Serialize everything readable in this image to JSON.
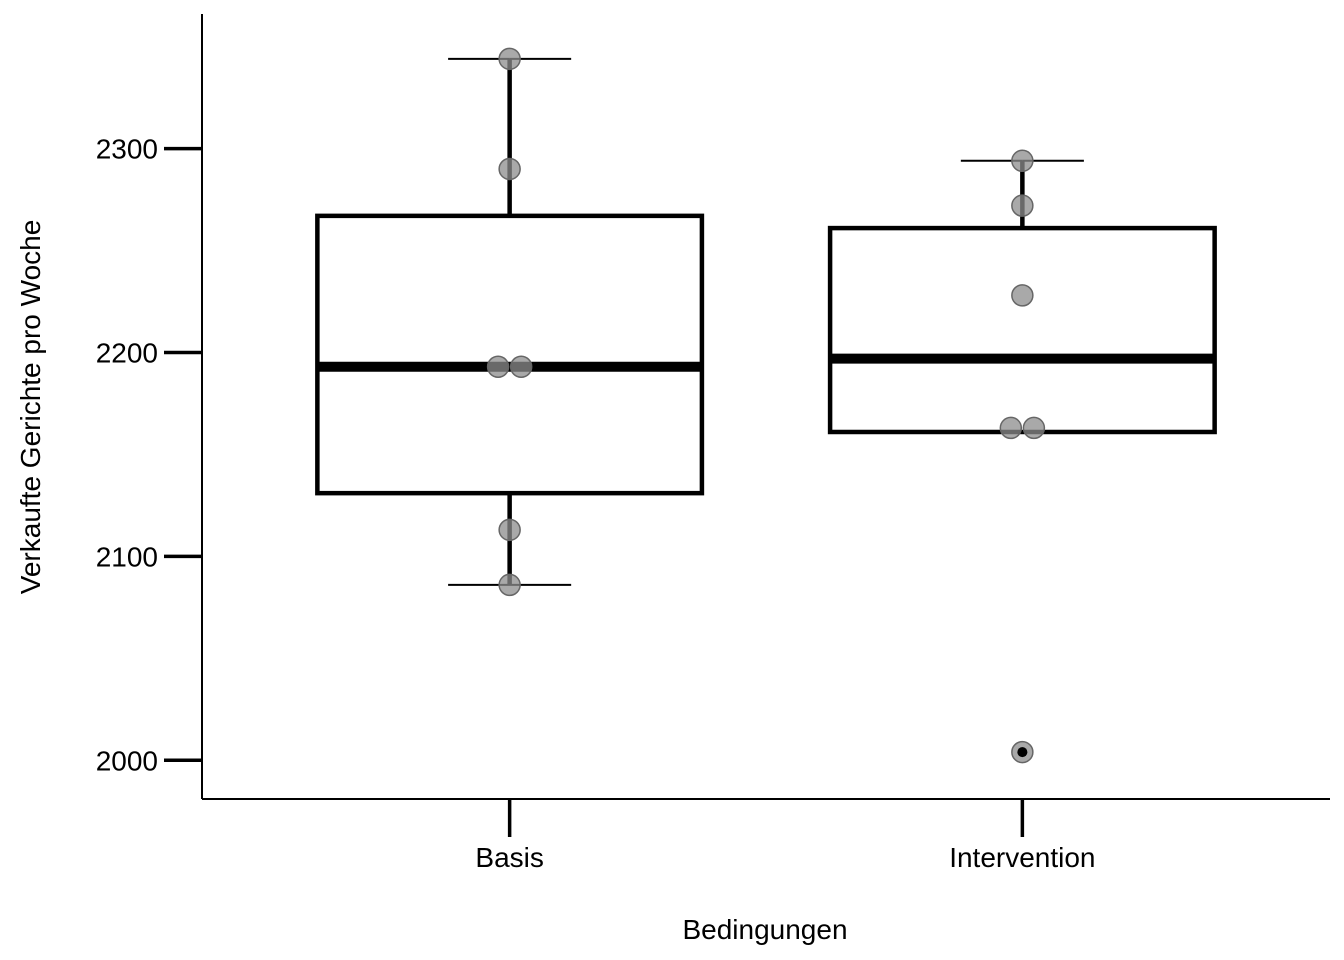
{
  "chart_data": {
    "type": "box",
    "xlabel": "Bedingungen",
    "ylabel": "Verkaufte Gerichte pro Woche",
    "ylim": [
      1981,
      2366
    ],
    "yticks": [
      2000,
      2100,
      2200,
      2300
    ],
    "grid": false,
    "categories": [
      "Basis",
      "Intervention"
    ],
    "boxes": [
      {
        "category": "Basis",
        "whisker_low": 2086,
        "q1": 2131,
        "median": 2193,
        "q3": 2267,
        "whisker_high": 2344,
        "outliers": [],
        "points": [
          {
            "offset": 0,
            "y": 2344
          },
          {
            "offset": 0,
            "y": 2290
          },
          {
            "offset": -0.03,
            "y": 2193
          },
          {
            "offset": 0.03,
            "y": 2193
          },
          {
            "offset": 0,
            "y": 2113
          },
          {
            "offset": 0,
            "y": 2086
          }
        ]
      },
      {
        "category": "Intervention",
        "whisker_low": 2161,
        "q1": 2161,
        "median": 2197,
        "q3": 2261,
        "whisker_high": 2294,
        "outliers": [
          2004
        ],
        "points": [
          {
            "offset": 0,
            "y": 2294
          },
          {
            "offset": 0,
            "y": 2272
          },
          {
            "offset": 0,
            "y": 2228
          },
          {
            "offset": -0.03,
            "y": 2163
          },
          {
            "offset": 0.03,
            "y": 2163
          },
          {
            "offset": 0,
            "y": 2004
          }
        ]
      }
    ]
  }
}
